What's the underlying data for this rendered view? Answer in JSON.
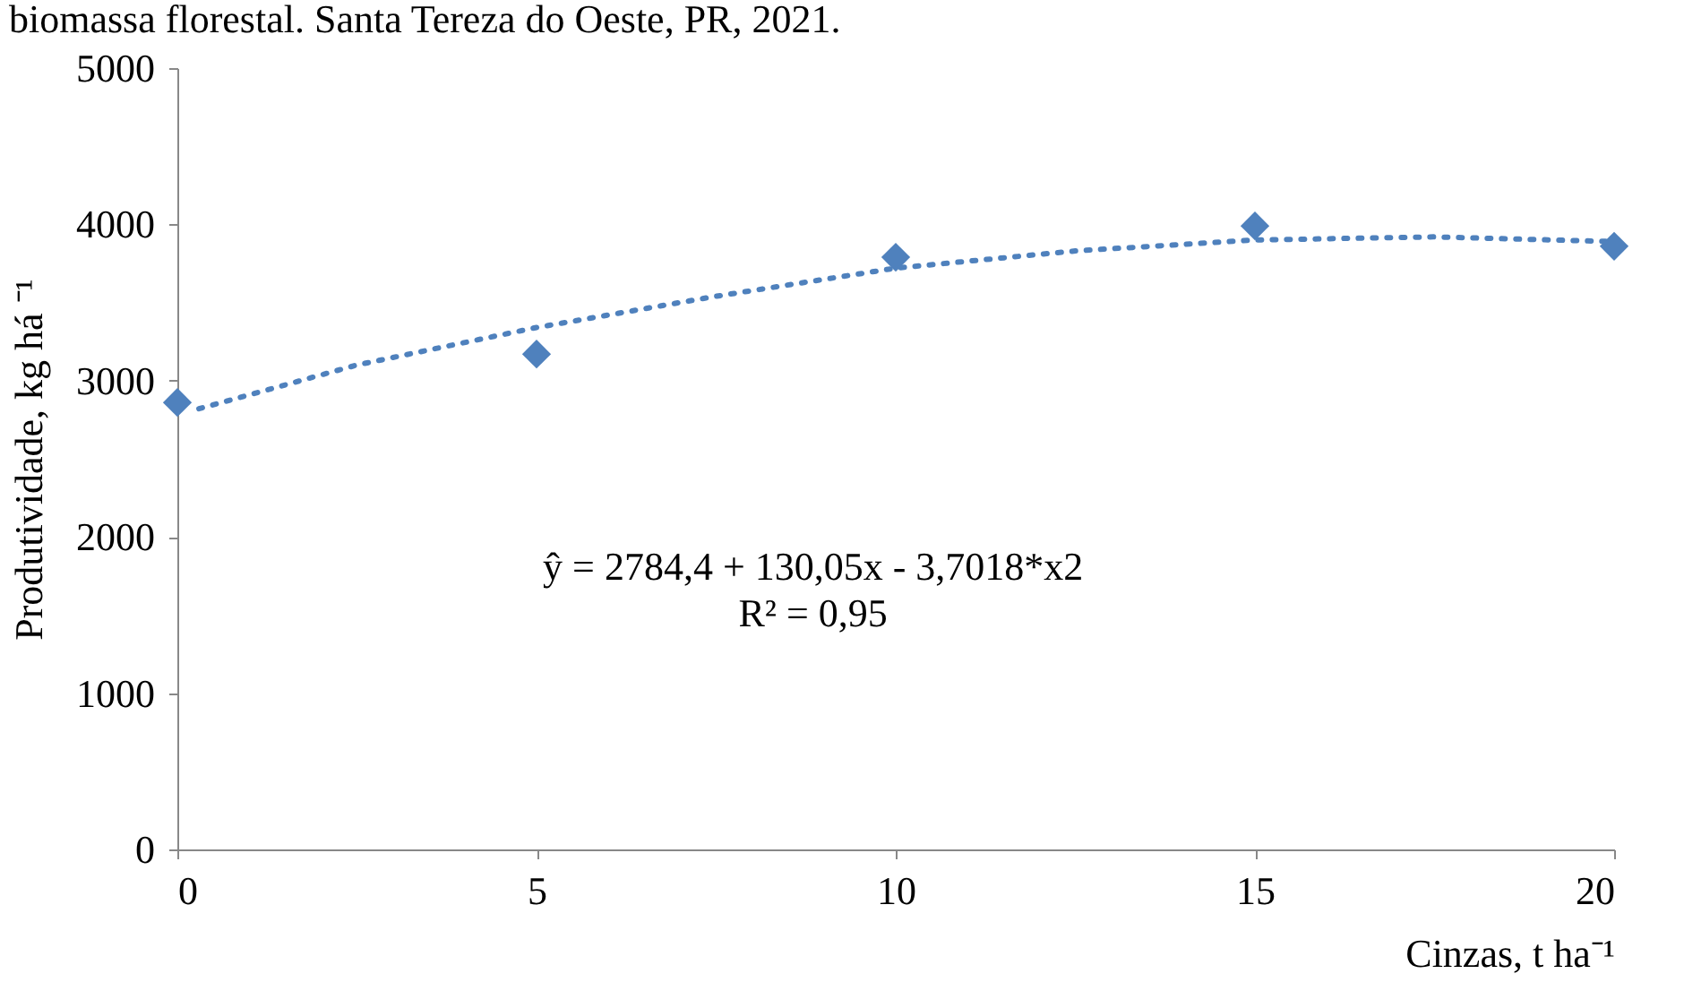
{
  "chart_data": {
    "type": "scatter",
    "title": "biomassa florestal. Santa Tereza do Oeste, PR, 2021.",
    "xlabel": "Cinzas, t ha⁻¹",
    "ylabel": "Produtividade, kg há ⁻¹",
    "xlim": [
      0,
      20
    ],
    "xticks": [
      0,
      5,
      10,
      15,
      20
    ],
    "ylim": [
      0,
      5000
    ],
    "yticks": [
      0,
      1000,
      2000,
      3000,
      4000,
      5000
    ],
    "grid": false,
    "marker": "diamond",
    "x": [
      0,
      5,
      10,
      15,
      20
    ],
    "series": [
      {
        "color": "#4f81bd",
        "values": [
          2860,
          3170,
          3790,
          3990,
          3860
        ]
      },
      {
        "type": "line",
        "line_style": "dotted",
        "marker": "none",
        "color": "#4f81bd",
        "x": [
          0.3,
          2.5,
          5,
          7.5,
          10,
          12.5,
          15,
          17.5,
          20
        ],
        "values": [
          2820,
          3100,
          3340,
          3540,
          3720,
          3830,
          3900,
          3920,
          3890
        ]
      }
    ],
    "annotations": [
      "ŷ = 2784,4 + 130,05x - 3,7018*x2",
      "R² = 0,95"
    ]
  }
}
